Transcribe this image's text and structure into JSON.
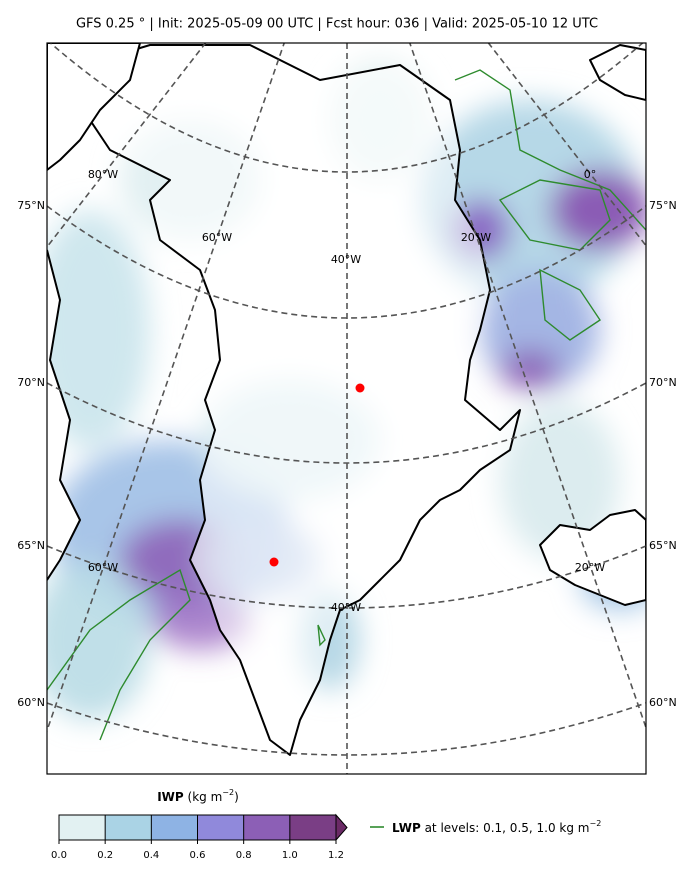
{
  "title": "GFS 0.25 °  |  Init: 2025-05-09 00 UTC  |  Fcst hour: 036  |  Valid: 2025-05-10 12 UTC",
  "map": {
    "lat_labels_left": [
      "75°N",
      "70°N",
      "65°N",
      "60°N"
    ],
    "lat_labels_right": [
      "75°N",
      "70°N",
      "65°N",
      "60°N"
    ],
    "lon_labels": [
      "80°W",
      "60°W",
      "40°W",
      "20°W",
      "0°",
      "60°W",
      "40°W",
      "20°W"
    ]
  },
  "colorbar": {
    "name": "IWP",
    "unit": "(kg m",
    "exponent": "−2",
    "close": ")",
    "ticks": [
      {
        "value": 0,
        "label": "0.0"
      },
      {
        "value": 0.2,
        "label": "0.2"
      },
      {
        "value": 0.4,
        "label": "0.4"
      },
      {
        "value": 0.6,
        "label": "0.6"
      },
      {
        "value": 0.8,
        "label": "0.8"
      },
      {
        "value": 1.0,
        "label": "1.0"
      },
      {
        "value": 1.2,
        "label": "1.2"
      }
    ],
    "colors": [
      "#e2f1f2",
      "#aad3e5",
      "#8eb3e4",
      "#9089db",
      "#8c5fb6",
      "#7a3e85"
    ],
    "extend_color": "#6b2a66"
  },
  "legend": {
    "name": "LWP",
    "text": "at levels: 0.1, 0.5, 1.0  kg m",
    "exponent": "−2",
    "color": "#2e8b2e"
  }
}
